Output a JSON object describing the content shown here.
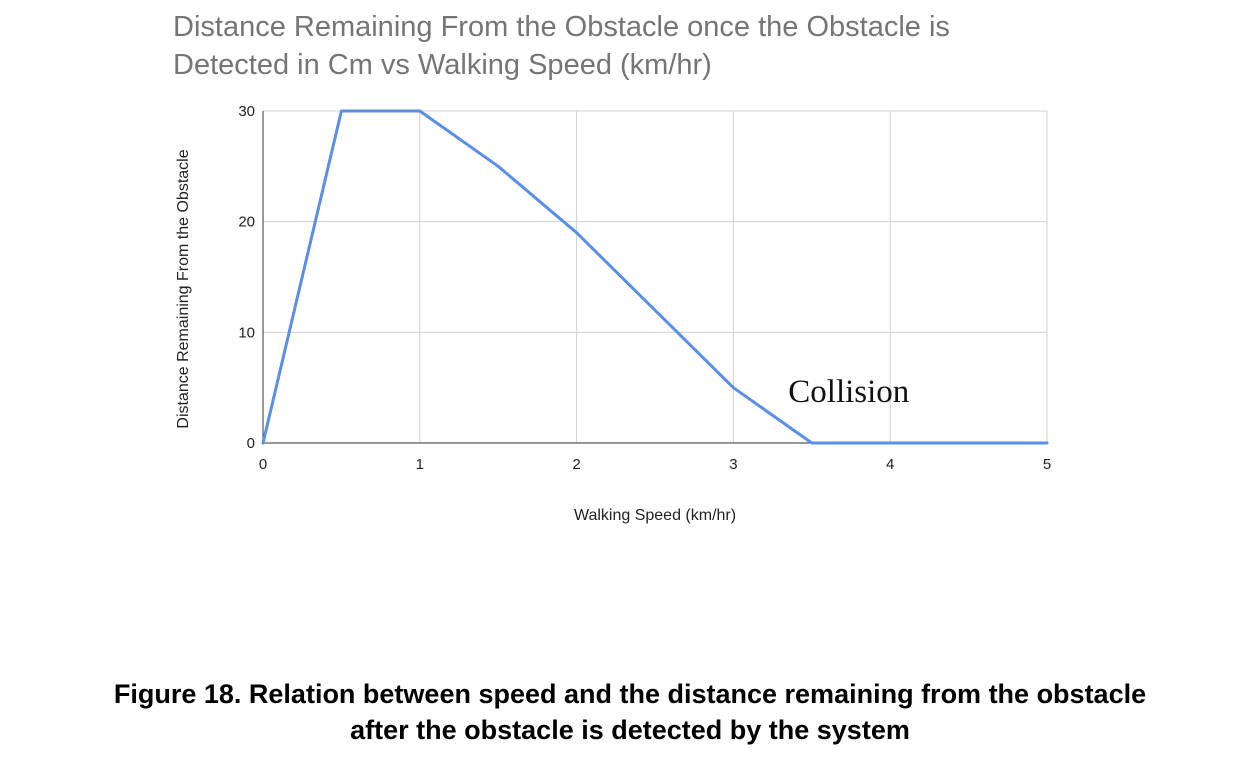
{
  "chart_data": {
    "type": "line",
    "title_lines": [
      "Distance Remaining From the Obstacle once the Obstacle is",
      "Detected in Cm vs Walking Speed (km/hr)"
    ],
    "xlabel": "Walking Speed (km/hr)",
    "ylabel": "Distance Remaining From the Obstacle",
    "xlim": [
      0,
      5
    ],
    "ylim": [
      0,
      30
    ],
    "x_ticks": [
      0,
      1,
      2,
      3,
      4,
      5
    ],
    "y_ticks": [
      0,
      10,
      20,
      30
    ],
    "grid": true,
    "series": [
      {
        "color": "#5b8ee6",
        "points": [
          {
            "x": 0,
            "y": 0
          },
          {
            "x": 0.5,
            "y": 30
          },
          {
            "x": 1,
            "y": 30
          },
          {
            "x": 1.5,
            "y": 25
          },
          {
            "x": 2,
            "y": 19
          },
          {
            "x": 2.5,
            "y": 12
          },
          {
            "x": 3,
            "y": 5
          },
          {
            "x": 3.5,
            "y": 0
          },
          {
            "x": 4,
            "y": 0
          },
          {
            "x": 4.5,
            "y": 0
          },
          {
            "x": 5,
            "y": 0
          }
        ]
      }
    ],
    "annotations": [
      {
        "text": "Collision",
        "x": 3.35,
        "y": 3.7
      }
    ]
  },
  "caption": {
    "line1": "Figure 18.  Relation between speed and the distance remaining from the obstacle",
    "line2": "after the obstacle is detected by the system"
  }
}
